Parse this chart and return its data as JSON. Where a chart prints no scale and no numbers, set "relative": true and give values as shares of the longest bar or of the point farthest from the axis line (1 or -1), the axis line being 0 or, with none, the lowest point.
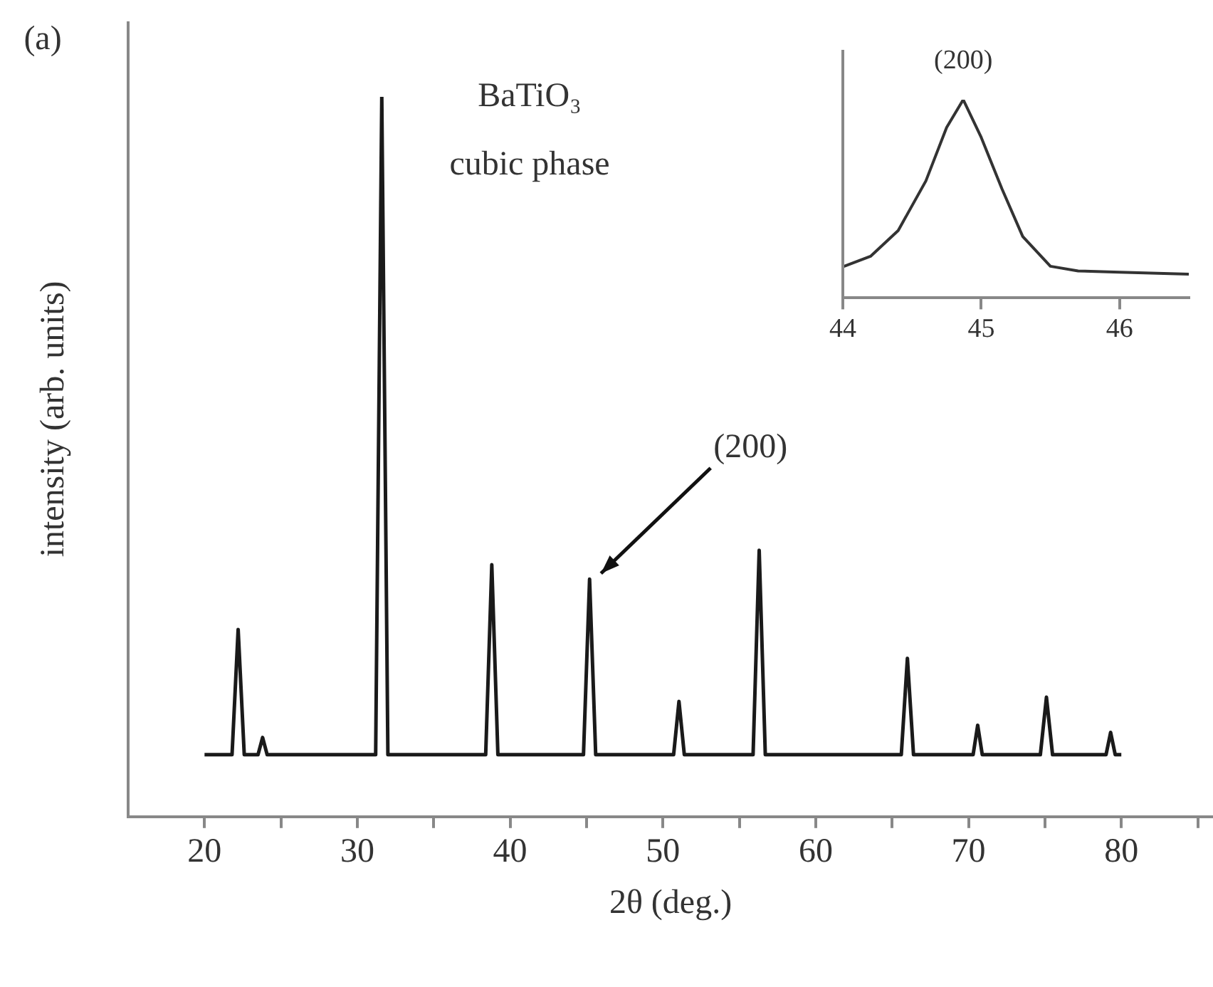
{
  "chart_data": [
    {
      "type": "line",
      "relative": true,
      "xlabel": "2θ (deg.)",
      "ylabel": "intensity (arb. units)",
      "xlim": [
        15,
        86
      ],
      "xticks": [
        20,
        {
          "value": 25,
          "label": null
        },
        30,
        {
          "value": 35,
          "label": null
        },
        40,
        {
          "value": 45,
          "label": null
        },
        50,
        {
          "value": 55,
          "label": null
        },
        60,
        {
          "value": 65,
          "label": null
        },
        70,
        {
          "value": 75,
          "label": null
        },
        80,
        {
          "value": 85,
          "label": null
        }
      ],
      "annotations": [
        "(a)",
        "BaTiO₃\ncubic phase",
        {
          "text": "(200)",
          "x": 45.2,
          "y": 0.33
        }
      ],
      "series": [
        {
          "color": "#1a1a1a",
          "x": [
            20,
            21.8,
            22.2,
            22.6,
            23.5,
            23.8,
            24.1,
            31.2,
            31.6,
            32.0,
            38.4,
            38.8,
            39.2,
            44.8,
            45.2,
            45.6,
            50.7,
            51.05,
            51.4,
            55.9,
            56.3,
            56.7,
            65.6,
            66.0,
            66.4,
            70.3,
            70.6,
            70.9,
            74.7,
            75.1,
            75.5,
            79.0,
            79.3,
            79.6,
            80
          ],
          "values": [
            0.086,
            0.086,
            0.26,
            0.086,
            0.086,
            0.11,
            0.086,
            0.086,
            1,
            0.086,
            0.086,
            0.35,
            0.086,
            0.086,
            0.33,
            0.086,
            0.086,
            0.16,
            0.086,
            0.086,
            0.37,
            0.086,
            0.086,
            0.22,
            0.086,
            0.086,
            0.127,
            0.086,
            0.086,
            0.166,
            0.086,
            0.086,
            0.117,
            0.086,
            0.086
          ]
        }
      ]
    },
    {
      "type": "line",
      "relative": true,
      "xlim": [
        44,
        46.5
      ],
      "xticks": [
        44,
        45,
        46
      ],
      "annotations": [
        {
          "text": "(200)",
          "x": 44.87,
          "y": 1
        }
      ],
      "series": [
        {
          "color": "#333333",
          "x": [
            44.0,
            44.2,
            44.4,
            44.6,
            44.75,
            44.87,
            45.0,
            45.15,
            45.3,
            45.5,
            45.7,
            46.0,
            46.5
          ],
          "values": [
            0.157,
            0.21,
            0.34,
            0.59,
            0.86,
            1,
            0.81,
            0.55,
            0.31,
            0.16,
            0.136,
            0.13,
            0.12
          ]
        }
      ]
    }
  ]
}
